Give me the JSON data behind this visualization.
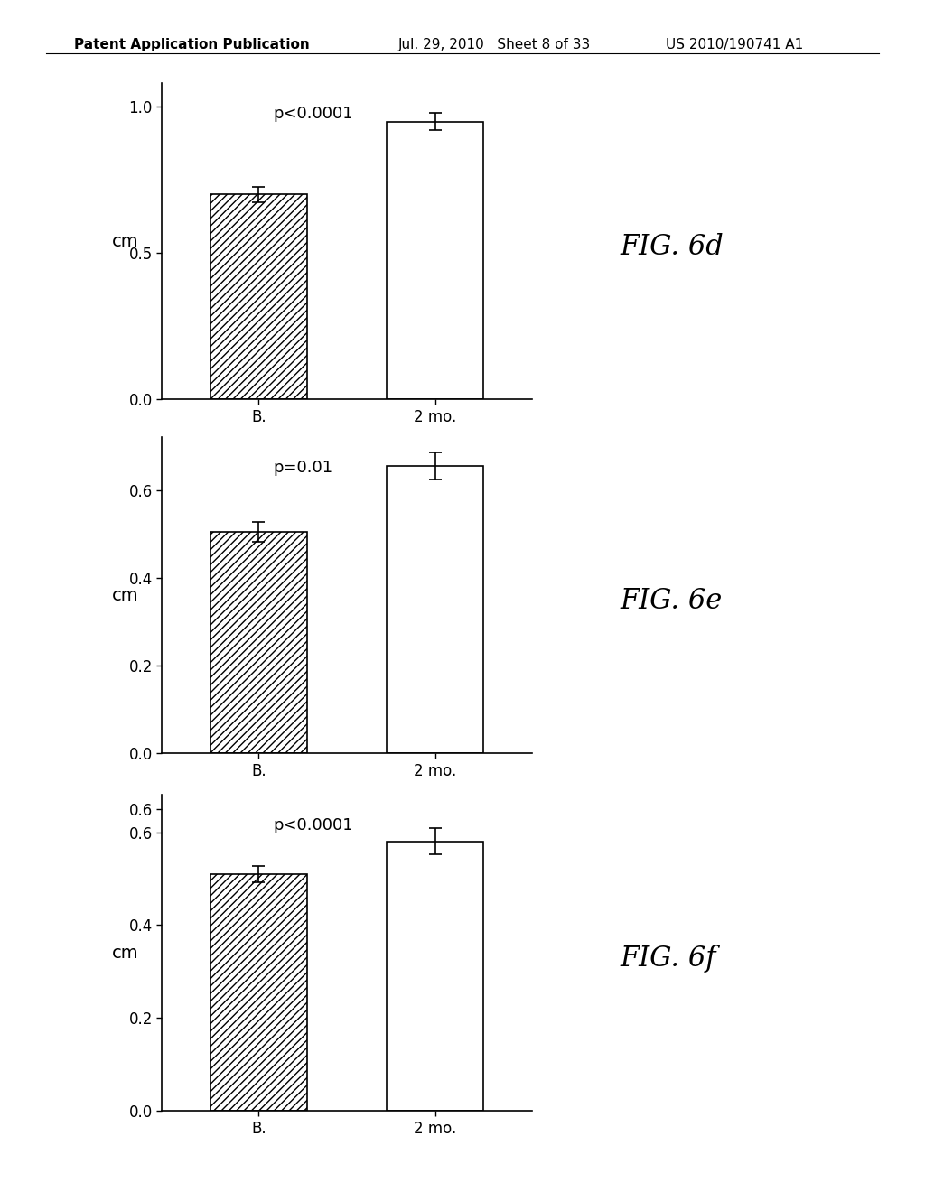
{
  "charts": [
    {
      "fig_label": "FIG. 6d",
      "p_label": "p<0.0001",
      "bar_values": [
        0.7,
        0.95
      ],
      "bar_errors": [
        0.025,
        0.03
      ],
      "ylim": [
        0.0,
        1.08
      ],
      "yticks": [
        0.0,
        0.5,
        1.0
      ],
      "ytick_labels": [
        "0.0",
        "0.5",
        "1.0"
      ],
      "extra_ytick": null
    },
    {
      "fig_label": "FIG. 6e",
      "p_label": "p=0.01",
      "bar_values": [
        0.505,
        0.655
      ],
      "bar_errors": [
        0.022,
        0.03
      ],
      "ylim": [
        0.0,
        0.72
      ],
      "yticks": [
        0.0,
        0.2,
        0.4,
        0.6
      ],
      "ytick_labels": [
        "0.0",
        "0.2",
        "0.4",
        "0.6"
      ],
      "extra_ytick": null
    },
    {
      "fig_label": "FIG. 6f",
      "p_label": "p<0.0001",
      "bar_values": [
        0.51,
        0.58
      ],
      "bar_errors": [
        0.018,
        0.028
      ],
      "ylim": [
        0.0,
        0.68
      ],
      "yticks": [
        0.0,
        0.2,
        0.4,
        0.6
      ],
      "ytick_labels": [
        "0.0",
        "0.2",
        "0.4",
        "0.6"
      ],
      "extra_ytick": 0.6
    }
  ],
  "categories": [
    "B.",
    "2 mo."
  ],
  "ylabel": "cm",
  "background_color": "#ffffff",
  "bar_width": 0.55,
  "hatch_pattern": "////",
  "fig_label_fontsize": 22,
  "axis_fontsize": 13,
  "tick_fontsize": 12,
  "p_fontsize": 13,
  "header_left": "Patent Application Publication",
  "header_mid": "Jul. 29, 2010   Sheet 8 of 33",
  "header_right": "US 2010/190741 A1",
  "header_fontsize": 11
}
